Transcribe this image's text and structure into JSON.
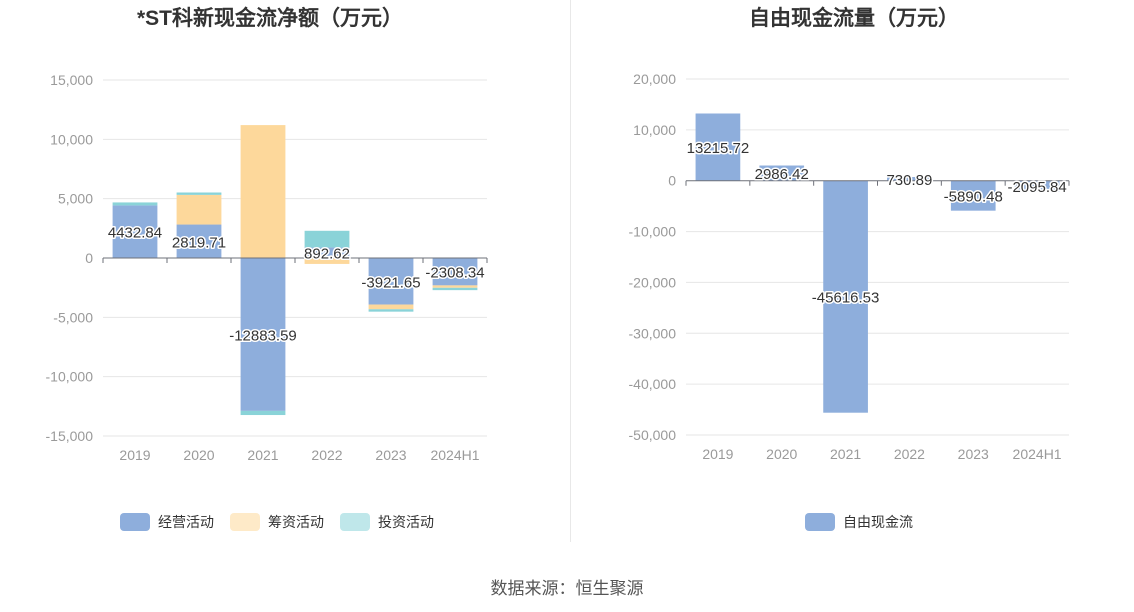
{
  "source_label": "数据来源：恒生聚源",
  "chart_data": [
    {
      "type": "bar",
      "stacked": true,
      "title": "*ST科新现金流净额（万元）",
      "categories": [
        "2019",
        "2020",
        "2021",
        "2022",
        "2023",
        "2024H1"
      ],
      "ylim": [
        -15000,
        15000
      ],
      "yticks": [
        15000,
        10000,
        5000,
        0,
        -5000,
        -10000,
        -15000
      ],
      "ytick_labels": [
        "15,000",
        "10,000",
        "5,000",
        "0",
        "-5,000",
        "-10,000",
        "-15,000"
      ],
      "grid": true,
      "legend_position": "bottom",
      "series": [
        {
          "name": "经营活动",
          "color": "#8eaedc",
          "values": [
            4432.84,
            2819.71,
            -12883.59,
            892.62,
            -3921.65,
            -2308.34
          ]
        },
        {
          "name": "筹资活动",
          "color": "#fdd89b",
          "values": [
            0,
            2500,
            11200,
            -500,
            -400,
            -200
          ]
        },
        {
          "name": "投资活动",
          "color": "#8ad3d8",
          "values": [
            250,
            200,
            -350,
            1400,
            -200,
            -200
          ]
        }
      ],
      "data_labels": [
        "4432.84",
        "2819.71",
        "-12883.59",
        "892.62",
        "-3921.65",
        "-2308.34"
      ]
    },
    {
      "type": "bar",
      "title": "自由现金流量（万元）",
      "categories": [
        "2019",
        "2020",
        "2021",
        "2022",
        "2023",
        "2024H1"
      ],
      "ylim": [
        -50000,
        20000
      ],
      "yticks": [
        20000,
        10000,
        0,
        -10000,
        -20000,
        -30000,
        -40000,
        -50000
      ],
      "ytick_labels": [
        "20,000",
        "10,000",
        "0",
        "-10,000",
        "-20,000",
        "-30,000",
        "-40,000",
        "-50,000"
      ],
      "grid": true,
      "legend_position": "bottom",
      "series": [
        {
          "name": "自由现金流",
          "color": "#8eaedc",
          "values": [
            13215.72,
            2986.42,
            -45616.53,
            730.89,
            -5890.48,
            -2095.84
          ]
        }
      ],
      "data_labels": [
        "13215.72",
        "2986.42",
        "-45616.53",
        "730.89",
        "-5890.48",
        "-2095.84"
      ]
    }
  ]
}
